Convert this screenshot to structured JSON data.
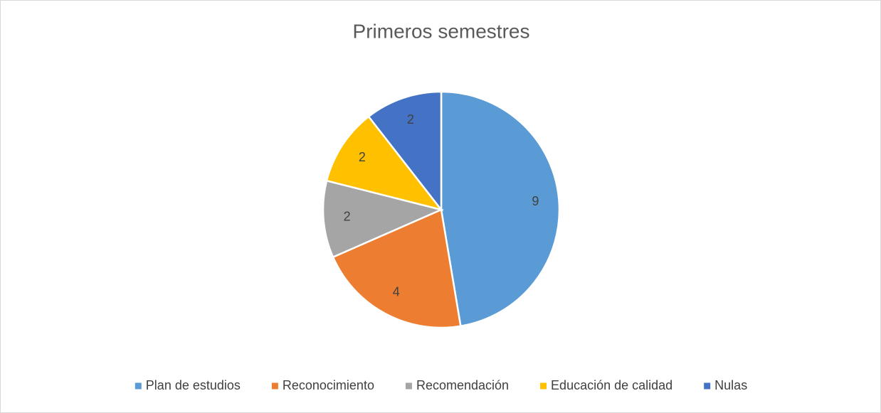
{
  "chart_data": {
    "type": "pie",
    "title": "Primeros semestres",
    "categories": [
      "Plan de estudios",
      "Reconocimiento",
      "Recomendación",
      "Educación de calidad",
      "Nulas"
    ],
    "values": [
      9,
      4,
      2,
      2,
      2
    ],
    "colors": [
      "#5b9bd5",
      "#ed7d31",
      "#a5a5a5",
      "#ffc000",
      "#4472c4"
    ],
    "legend": "bottom"
  }
}
